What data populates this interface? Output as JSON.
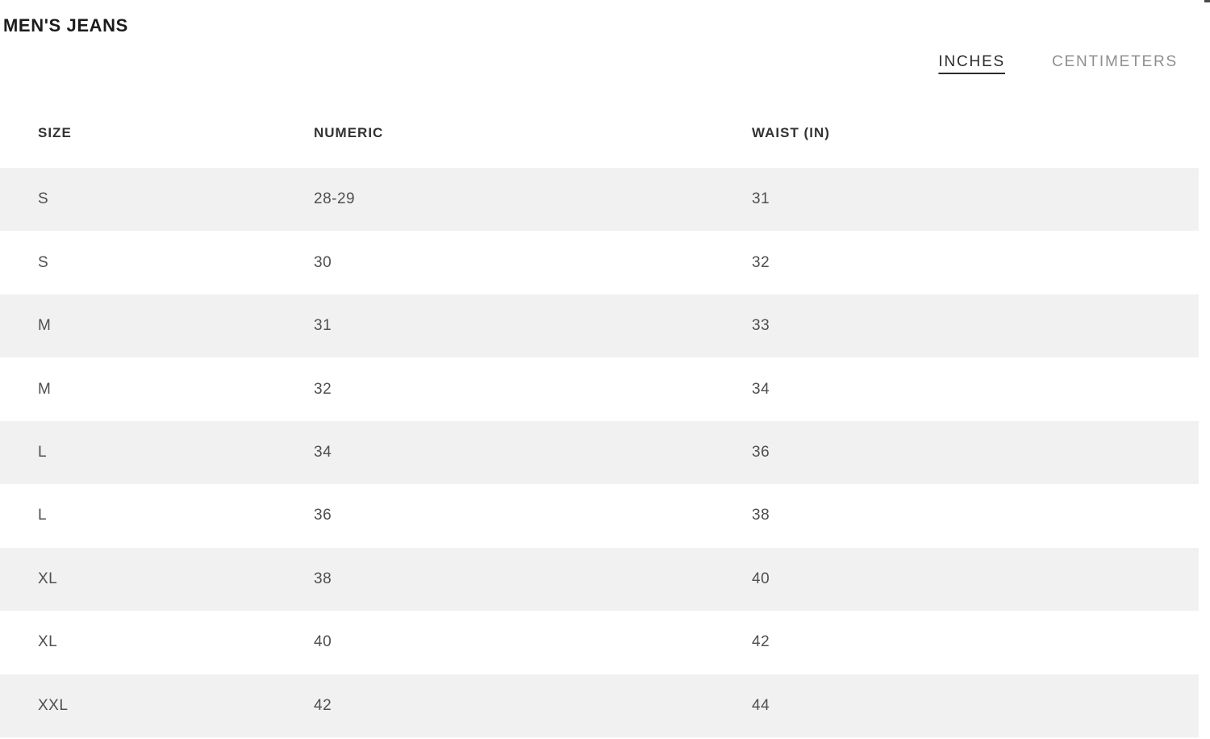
{
  "page": {
    "title": "MEN'S JEANS"
  },
  "unit_toggle": {
    "options": [
      {
        "label": "INCHES",
        "active": true
      },
      {
        "label": "CENTIMETERS",
        "active": false
      }
    ]
  },
  "table": {
    "columns": [
      "SIZE",
      "NUMERIC",
      "WAIST (IN)"
    ],
    "rows": [
      [
        "S",
        "28-29",
        "31"
      ],
      [
        "S",
        "30",
        "32"
      ],
      [
        "M",
        "31",
        "33"
      ],
      [
        "M",
        "32",
        "34"
      ],
      [
        "L",
        "34",
        "36"
      ],
      [
        "L",
        "36",
        "38"
      ],
      [
        "XL",
        "38",
        "40"
      ],
      [
        "XL",
        "40",
        "42"
      ],
      [
        "XXL",
        "42",
        "44"
      ]
    ]
  },
  "colors": {
    "stripe": "#f1f1f1",
    "title_text": "#1c1c1c",
    "header_text": "#323232",
    "cell_text": "#4f4f4f",
    "active_toggle_text": "#2b2b2b",
    "inactive_toggle_text": "#8f8f8f",
    "background": "#ffffff"
  }
}
